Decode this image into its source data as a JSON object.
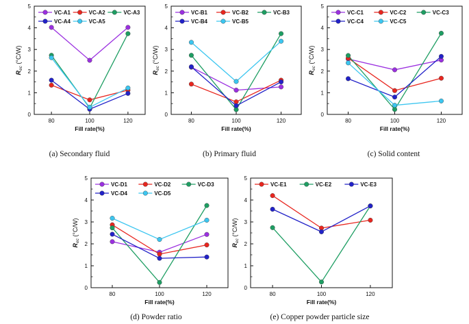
{
  "chart_data": [
    {
      "type": "line",
      "caption": "(a) Secondary fluid",
      "xlabel": "Fill rate(%)",
      "ylabel_main": "R",
      "ylabel_sub": "ec",
      "ylabel_unit": " (°C/W)",
      "x": [
        80,
        100,
        120
      ],
      "xticks": [
        "80",
        "100",
        "120"
      ],
      "ylim": [
        0,
        5
      ],
      "yticks": [
        "0",
        "1",
        "2",
        "3",
        "4",
        "5"
      ],
      "series": [
        {
          "name": "VC-A1",
          "color": "#9b30e0",
          "values": [
            4.02,
            2.5,
            4.02
          ]
        },
        {
          "name": "VC-A2",
          "color": "#e8261f",
          "values": [
            1.35,
            0.67,
            1.12
          ]
        },
        {
          "name": "VC-A3",
          "color": "#1e9e63",
          "values": [
            2.73,
            0.29,
            3.73
          ]
        },
        {
          "name": "VC-A4",
          "color": "#2222c8",
          "values": [
            1.58,
            0.24,
            0.97
          ]
        },
        {
          "name": "VC-A5",
          "color": "#3cc6f0",
          "values": [
            2.62,
            0.33,
            1.22
          ]
        }
      ]
    },
    {
      "type": "line",
      "caption": "(b) Primary fluid",
      "xlabel": "Fill rate(%)",
      "ylabel_main": "R",
      "ylabel_sub": "ec",
      "ylabel_unit": " (°C/W)",
      "x": [
        80,
        100,
        120
      ],
      "xticks": [
        "80",
        "100",
        "120"
      ],
      "ylim": [
        0,
        5
      ],
      "yticks": [
        "0",
        "1",
        "2",
        "3",
        "4",
        "5"
      ],
      "series": [
        {
          "name": "VC-B1",
          "color": "#9b30e0",
          "values": [
            2.18,
            1.12,
            1.27
          ]
        },
        {
          "name": "VC-B2",
          "color": "#e8261f",
          "values": [
            1.4,
            0.58,
            1.58
          ]
        },
        {
          "name": "VC-B3",
          "color": "#1e9e63",
          "values": [
            2.73,
            0.22,
            3.73
          ]
        },
        {
          "name": "VC-B4",
          "color": "#2222c8",
          "values": [
            2.2,
            0.4,
            1.5
          ]
        },
        {
          "name": "VC-B5",
          "color": "#3cc6f0",
          "values": [
            3.33,
            1.52,
            3.38
          ]
        }
      ]
    },
    {
      "type": "line",
      "caption": "(c) Solid content",
      "xlabel": "Fill rate(%)",
      "ylabel_main": "R",
      "ylabel_sub": "ec",
      "ylabel_unit": " (°C/W)",
      "x": [
        80,
        100,
        120
      ],
      "xticks": [
        "80",
        "100",
        "120"
      ],
      "ylim": [
        0,
        5
      ],
      "yticks": [
        "0",
        "1",
        "2",
        "3",
        "4",
        "5"
      ],
      "series": [
        {
          "name": "VC-C1",
          "color": "#9b30e0",
          "values": [
            2.56,
            2.06,
            2.51
          ]
        },
        {
          "name": "VC-C2",
          "color": "#e8261f",
          "values": [
            2.6,
            1.1,
            1.67
          ]
        },
        {
          "name": "VC-C3",
          "color": "#1e9e63",
          "values": [
            2.72,
            0.23,
            3.75
          ]
        },
        {
          "name": "VC-C4",
          "color": "#2222c8",
          "values": [
            1.65,
            0.8,
            2.68
          ]
        },
        {
          "name": "VC-C5",
          "color": "#3cc6f0",
          "values": [
            2.38,
            0.42,
            0.62
          ]
        }
      ]
    },
    {
      "type": "line",
      "caption": "(d) Powder ratio",
      "xlabel": "Fill rate(%)",
      "ylabel_main": "R",
      "ylabel_sub": "ec",
      "ylabel_unit": " (°C/W)",
      "x": [
        80,
        100,
        120
      ],
      "xticks": [
        "80",
        "100",
        "120"
      ],
      "ylim": [
        0,
        5
      ],
      "yticks": [
        "0",
        "1",
        "2",
        "3",
        "4",
        "5"
      ],
      "series": [
        {
          "name": "VC-D1",
          "color": "#9b30e0",
          "values": [
            2.1,
            1.62,
            2.43
          ]
        },
        {
          "name": "VC-D2",
          "color": "#e8261f",
          "values": [
            2.87,
            1.53,
            1.95
          ]
        },
        {
          "name": "VC-D3",
          "color": "#1e9e63",
          "values": [
            2.73,
            0.24,
            3.75
          ]
        },
        {
          "name": "VC-D4",
          "color": "#2222c8",
          "values": [
            2.44,
            1.34,
            1.4
          ]
        },
        {
          "name": "VC-D5",
          "color": "#3cc6f0",
          "values": [
            3.17,
            2.2,
            3.08
          ]
        }
      ]
    },
    {
      "type": "line",
      "caption": "(e) Copper powder particle size",
      "xlabel": "Fill rate(%)",
      "ylabel_main": "R",
      "ylabel_sub": "ec",
      "ylabel_unit": " (°C/W)",
      "x": [
        80,
        100,
        120
      ],
      "xticks": [
        "80",
        "100",
        "120"
      ],
      "ylim": [
        0,
        5
      ],
      "yticks": [
        "0",
        "1",
        "2",
        "3",
        "4",
        "5"
      ],
      "series": [
        {
          "name": "VC-E1",
          "color": "#e8261f",
          "values": [
            4.2,
            2.72,
            3.08
          ]
        },
        {
          "name": "VC-E2",
          "color": "#1e9e63",
          "values": [
            2.74,
            0.26,
            3.73
          ]
        },
        {
          "name": "VC-E3",
          "color": "#2222c8",
          "values": [
            3.58,
            2.55,
            3.73
          ]
        }
      ]
    }
  ]
}
